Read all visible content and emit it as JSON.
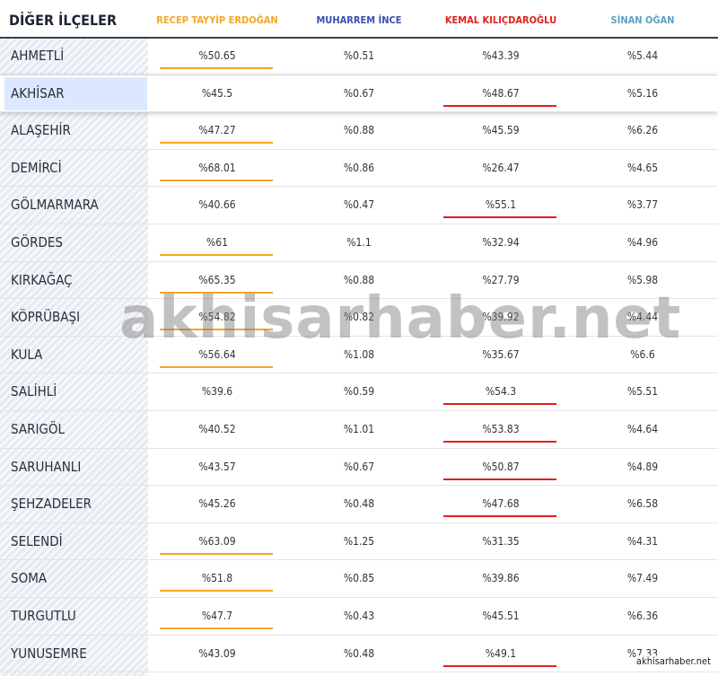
{
  "header": {
    "title": "DİĞER İLÇELER",
    "candidates": [
      {
        "name": "RECEP TAYYİP ERDOĞAN",
        "color": "#f5a623"
      },
      {
        "name": "MUHARREM İNCE",
        "color": "#3b4fb0"
      },
      {
        "name": "KEMAL KILIÇDAROĞLU",
        "color": "#e0211b"
      },
      {
        "name": "SİNAN OĞAN",
        "color": "#5a9fc4"
      }
    ]
  },
  "table": {
    "highlighted_row": 1,
    "rows": [
      [
        "AHMETLİ",
        "%50.65",
        "%0.51",
        "%43.39",
        "%5.44"
      ],
      [
        "AKHİSAR",
        "%45.5",
        "%0.67",
        "%48.67",
        "%5.16"
      ],
      [
        "ALAŞEHİR",
        "%47.27",
        "%0.88",
        "%45.59",
        "%6.26"
      ],
      [
        "DEMİRCİ",
        "%68.01",
        "%0.86",
        "%26.47",
        "%4.65"
      ],
      [
        "GÖLMARMARA",
        "%40.66",
        "%0.47",
        "%55.1",
        "%3.77"
      ],
      [
        "GÖRDES",
        "%61",
        "%1.1",
        "%32.94",
        "%4.96"
      ],
      [
        "KIRKAĞAÇ",
        "%65.35",
        "%0.88",
        "%27.79",
        "%5.98"
      ],
      [
        "KÖPRÜBAŞI",
        "%54.82",
        "%0.82",
        "%39.92",
        "%4.44"
      ],
      [
        "KULA",
        "%56.64",
        "%1.08",
        "%35.67",
        "%6.6"
      ],
      [
        "SALİHLİ",
        "%39.6",
        "%0.59",
        "%54.3",
        "%5.51"
      ],
      [
        "SARIGÖL",
        "%40.52",
        "%1.01",
        "%53.83",
        "%4.64"
      ],
      [
        "SARUHANLI",
        "%43.57",
        "%0.67",
        "%50.87",
        "%4.89"
      ],
      [
        "ŞEHZADELER",
        "%45.26",
        "%0.48",
        "%47.68",
        "%6.58"
      ],
      [
        "SELENDİ",
        "%63.09",
        "%1.25",
        "%31.35",
        "%4.31"
      ],
      [
        "SOMA",
        "%51.8",
        "%0.85",
        "%39.86",
        "%7.49"
      ],
      [
        "TURGUTLU",
        "%47.7",
        "%0.43",
        "%45.51",
        "%6.36"
      ],
      [
        "YUNUSEMRE",
        "%43.09",
        "%0.48",
        "%49.1",
        "%7.33"
      ]
    ]
  },
  "watermark": "akhisarhaber.net",
  "footer_mark": "akhisarhaber.net"
}
